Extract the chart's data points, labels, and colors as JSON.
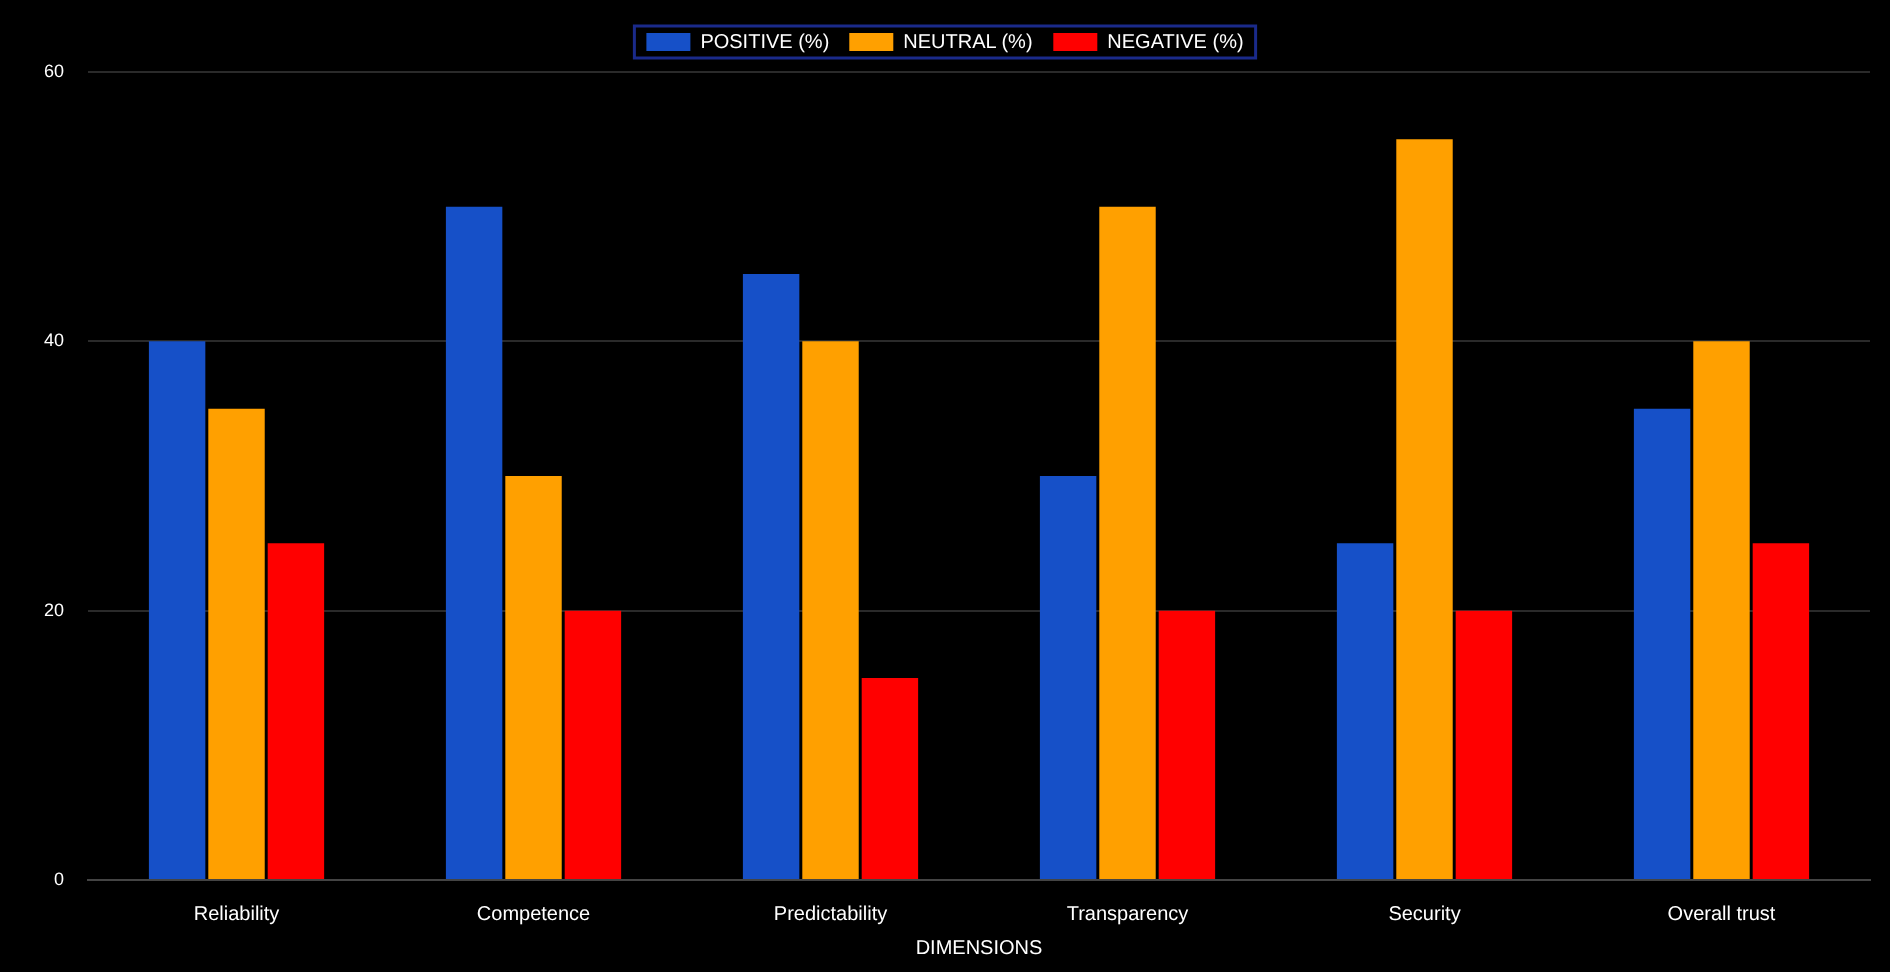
{
  "chart_data": {
    "type": "bar",
    "xlabel": "DIMENSIONS",
    "categories": [
      "Reliability",
      "Competence",
      "Predictability",
      "Transparency",
      "Security",
      "Overall trust"
    ],
    "series": [
      {
        "name": "POSITIVE (%)",
        "color": "#1650c8",
        "values": [
          40,
          50,
          45,
          30,
          25,
          35
        ]
      },
      {
        "name": "NEUTRAL (%)",
        "color": "#ffa000",
        "values": [
          35,
          30,
          40,
          50,
          55,
          40
        ]
      },
      {
        "name": "NEGATIVE (%)",
        "color": "#ff0000",
        "values": [
          25,
          20,
          15,
          20,
          20,
          25
        ]
      }
    ],
    "ylim": [
      0,
      60
    ],
    "yticks": [
      0,
      20,
      40,
      60
    ],
    "grid": "y",
    "legend": "top"
  }
}
